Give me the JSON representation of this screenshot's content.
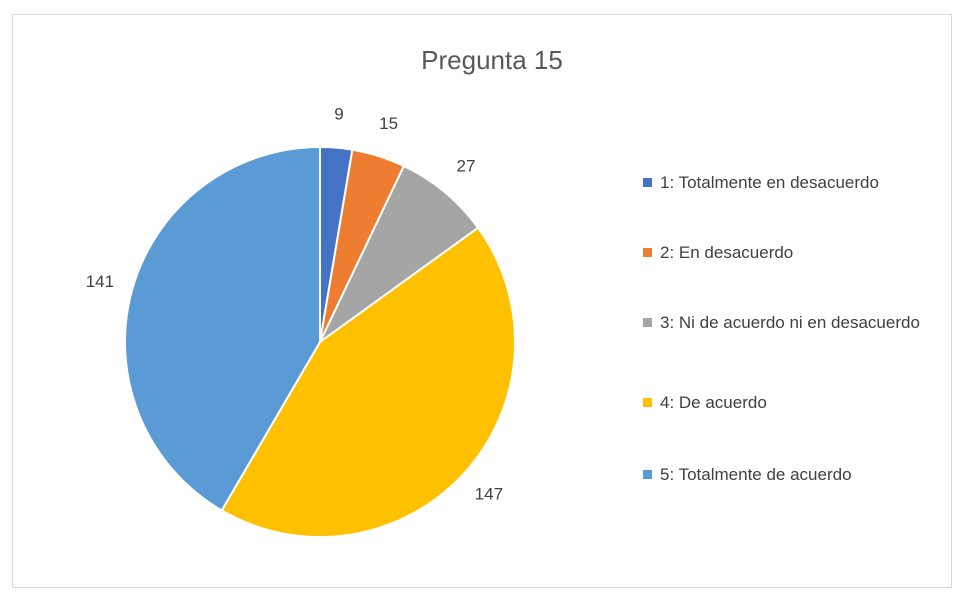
{
  "chart_data": {
    "type": "pie",
    "title": "Pregunta 15",
    "categories": [
      "1: Totalmente en desacuerdo",
      "2: En desacuerdo",
      "3: Ni de acuerdo ni en desacuerdo",
      "4: De acuerdo",
      "5: Totalmente de acuerdo"
    ],
    "values": [
      9,
      15,
      27,
      147,
      141
    ],
    "colors": [
      "#4472c4",
      "#ed7d31",
      "#a5a5a5",
      "#ffc000",
      "#5b9bd5"
    ],
    "legend": "right"
  }
}
